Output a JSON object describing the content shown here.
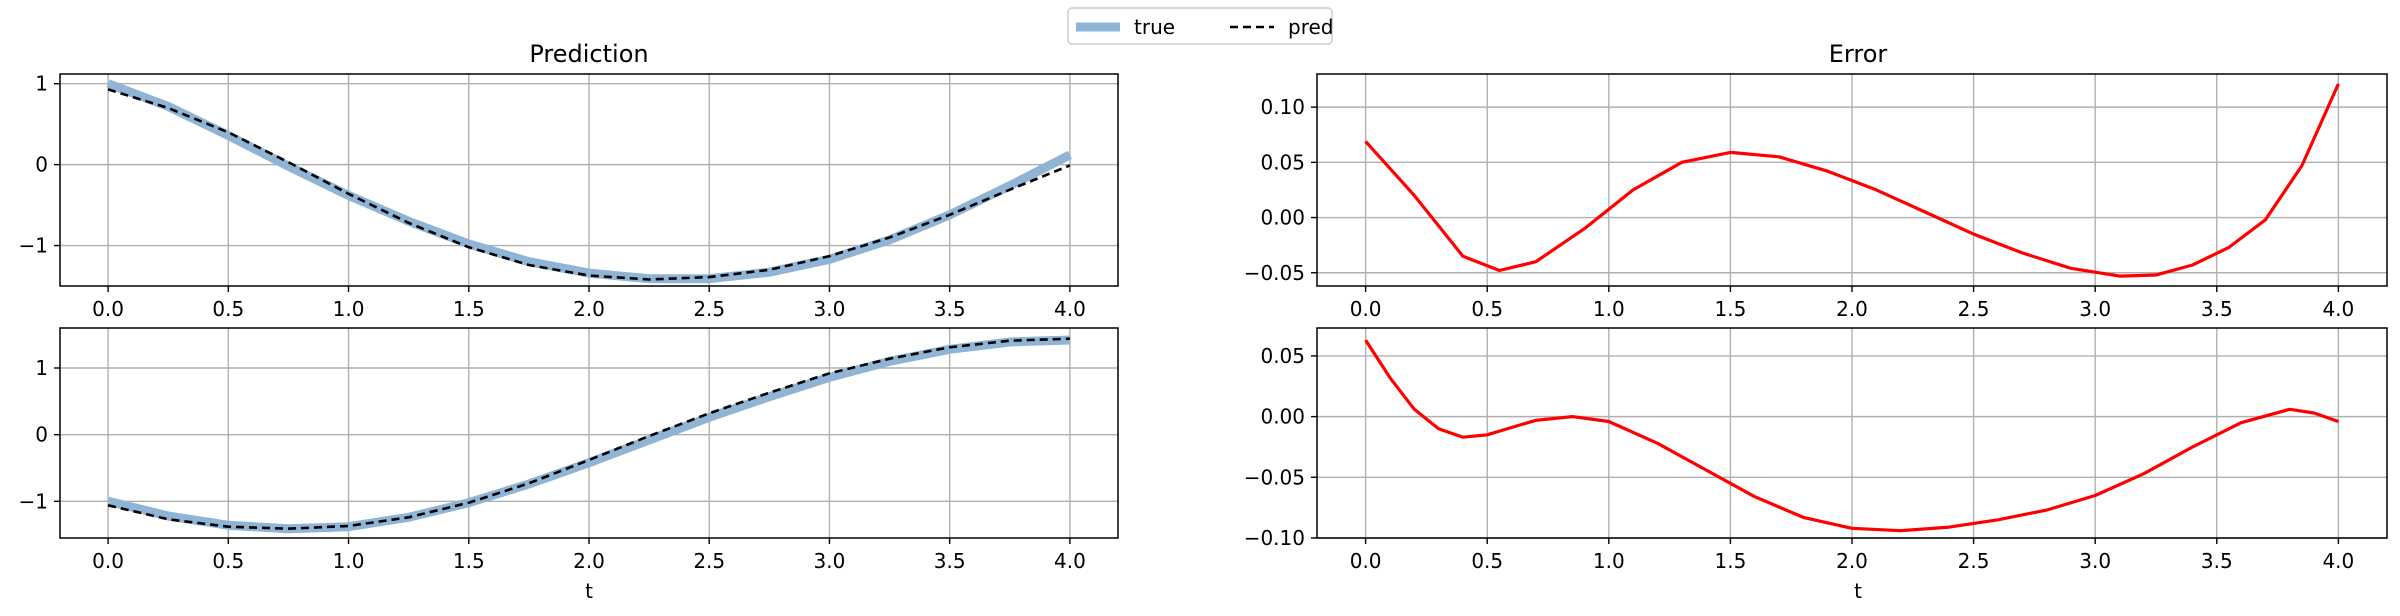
{
  "legend": {
    "entries": [
      {
        "label": "true",
        "color": "#8fb4d6",
        "style": "solid-thick"
      },
      {
        "label": "pred",
        "color": "#000000",
        "style": "dashed"
      }
    ],
    "placement": "top-center"
  },
  "chart_data": [
    {
      "type": "line",
      "title": "Prediction",
      "xlabel": "",
      "ylabel": "",
      "xlim": [
        -0.2,
        4.2
      ],
      "ylim": [
        -1.5,
        1.12
      ],
      "xticks": [
        0.0,
        0.5,
        1.0,
        1.5,
        2.0,
        2.5,
        3.0,
        3.5,
        4.0
      ],
      "xtick_labels": [
        "0.0",
        "0.5",
        "1.0",
        "1.5",
        "2.0",
        "2.5",
        "3.0",
        "3.5",
        "4.0"
      ],
      "yticks": [
        -1,
        0,
        1
      ],
      "ytick_labels": [
        "−1",
        "0",
        "1"
      ],
      "grid": true,
      "series": [
        {
          "name": "true",
          "color": "#8fb4d6",
          "x": [
            0.0,
            0.25,
            0.5,
            0.75,
            1.0,
            1.25,
            1.5,
            1.75,
            2.0,
            2.25,
            2.5,
            2.75,
            3.0,
            3.25,
            3.5,
            3.75,
            4.0
          ],
          "y": [
            1.0,
            0.72,
            0.36,
            -0.02,
            -0.38,
            -0.7,
            -0.98,
            -1.2,
            -1.34,
            -1.41,
            -1.41,
            -1.33,
            -1.17,
            -0.93,
            -0.62,
            -0.26,
            0.12
          ]
        },
        {
          "name": "pred",
          "color": "#000000",
          "x": [
            0.0,
            0.25,
            0.5,
            0.75,
            1.0,
            1.25,
            1.5,
            1.75,
            2.0,
            2.25,
            2.5,
            2.75,
            3.0,
            3.25,
            3.5,
            3.75,
            4.0
          ],
          "y": [
            0.93,
            0.7,
            0.4,
            0.03,
            -0.36,
            -0.72,
            -1.02,
            -1.24,
            -1.37,
            -1.42,
            -1.39,
            -1.3,
            -1.13,
            -0.9,
            -0.62,
            -0.31,
            -0.01
          ]
        }
      ]
    },
    {
      "type": "line",
      "title": "Error",
      "xlabel": "",
      "ylabel": "",
      "xlim": [
        -0.2,
        4.2
      ],
      "ylim": [
        -0.062,
        0.13
      ],
      "xticks": [
        0.0,
        0.5,
        1.0,
        1.5,
        2.0,
        2.5,
        3.0,
        3.5,
        4.0
      ],
      "xtick_labels": [
        "0.0",
        "0.5",
        "1.0",
        "1.5",
        "2.0",
        "2.5",
        "3.0",
        "3.5",
        "4.0"
      ],
      "yticks": [
        -0.05,
        0.0,
        0.05,
        0.1
      ],
      "ytick_labels": [
        "−0.05",
        "0.00",
        "0.05",
        "0.10"
      ],
      "grid": true,
      "series": [
        {
          "name": "",
          "color": "#ff0000",
          "x": [
            0.0,
            0.2,
            0.4,
            0.55,
            0.7,
            0.9,
            1.1,
            1.3,
            1.5,
            1.7,
            1.9,
            2.1,
            2.3,
            2.5,
            2.7,
            2.9,
            3.1,
            3.25,
            3.4,
            3.55,
            3.7,
            3.85,
            4.0
          ],
          "y": [
            0.069,
            0.02,
            -0.035,
            -0.048,
            -0.04,
            -0.01,
            0.025,
            0.05,
            0.059,
            0.055,
            0.042,
            0.025,
            0.005,
            -0.015,
            -0.032,
            -0.046,
            -0.053,
            -0.052,
            -0.043,
            -0.027,
            -0.002,
            0.047,
            0.121
          ]
        }
      ]
    },
    {
      "type": "line",
      "title": "",
      "xlabel": "t",
      "ylabel": "",
      "xlim": [
        -0.2,
        4.2
      ],
      "ylim": [
        -1.55,
        1.6
      ],
      "xticks": [
        0.0,
        0.5,
        1.0,
        1.5,
        2.0,
        2.5,
        3.0,
        3.5,
        4.0
      ],
      "xtick_labels": [
        "0.0",
        "0.5",
        "1.0",
        "1.5",
        "2.0",
        "2.5",
        "3.0",
        "3.5",
        "4.0"
      ],
      "yticks": [
        -1,
        0,
        1
      ],
      "ytick_labels": [
        "−1",
        "0",
        "1"
      ],
      "grid": true,
      "series": [
        {
          "name": "true",
          "color": "#8fb4d6",
          "x": [
            0.0,
            0.25,
            0.5,
            0.75,
            1.0,
            1.25,
            1.5,
            1.75,
            2.0,
            2.25,
            2.5,
            2.75,
            3.0,
            3.25,
            3.5,
            3.75,
            4.0
          ],
          "y": [
            -1.0,
            -1.22,
            -1.36,
            -1.41,
            -1.38,
            -1.24,
            -1.02,
            -0.74,
            -0.42,
            -0.08,
            0.26,
            0.57,
            0.86,
            1.1,
            1.28,
            1.39,
            1.42
          ]
        },
        {
          "name": "pred",
          "color": "#000000",
          "x": [
            0.0,
            0.25,
            0.5,
            0.75,
            1.0,
            1.25,
            1.5,
            1.75,
            2.0,
            2.25,
            2.5,
            2.75,
            3.0,
            3.25,
            3.5,
            3.75,
            4.0
          ],
          "y": [
            -1.06,
            -1.27,
            -1.38,
            -1.41,
            -1.37,
            -1.24,
            -1.02,
            -0.73,
            -0.38,
            -0.02,
            0.32,
            0.63,
            0.92,
            1.14,
            1.31,
            1.41,
            1.44
          ]
        }
      ]
    },
    {
      "type": "line",
      "title": "",
      "xlabel": "t",
      "ylabel": "",
      "xlim": [
        -0.2,
        4.2
      ],
      "ylim": [
        -0.1,
        0.073
      ],
      "xticks": [
        0.0,
        0.5,
        1.0,
        1.5,
        2.0,
        2.5,
        3.0,
        3.5,
        4.0
      ],
      "xtick_labels": [
        "0.0",
        "0.5",
        "1.0",
        "1.5",
        "2.0",
        "2.5",
        "3.0",
        "3.5",
        "4.0"
      ],
      "yticks": [
        -0.1,
        -0.05,
        0.0,
        0.05
      ],
      "ytick_labels": [
        "−0.10",
        "−0.05",
        "0.00",
        "0.05"
      ],
      "grid": true,
      "series": [
        {
          "name": "",
          "color": "#ff0000",
          "x": [
            0.0,
            0.1,
            0.2,
            0.3,
            0.4,
            0.5,
            0.6,
            0.7,
            0.85,
            1.0,
            1.2,
            1.4,
            1.6,
            1.8,
            2.0,
            2.2,
            2.4,
            2.6,
            2.8,
            3.0,
            3.2,
            3.4,
            3.6,
            3.8,
            3.9,
            4.0
          ],
          "y": [
            0.063,
            0.032,
            0.006,
            -0.01,
            -0.017,
            -0.015,
            -0.009,
            -0.003,
            0.0,
            -0.004,
            -0.022,
            -0.044,
            -0.066,
            -0.083,
            -0.092,
            -0.094,
            -0.091,
            -0.085,
            -0.077,
            -0.065,
            -0.047,
            -0.025,
            -0.005,
            0.006,
            0.003,
            -0.004
          ]
        }
      ]
    }
  ]
}
